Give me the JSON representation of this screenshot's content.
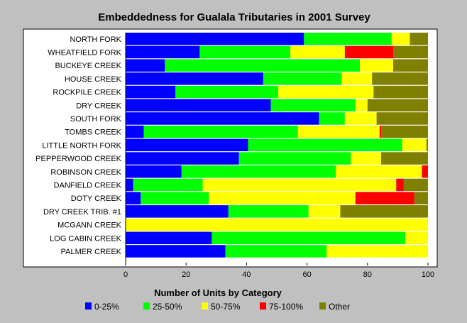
{
  "chart_data": {
    "type": "bar",
    "orientation": "horizontal",
    "stacked": true,
    "title": "Embeddedness for Gualala Tributaries in 2001 Survey",
    "xlabel": "Number of Units by Category",
    "ylabel": "",
    "xlim": [
      0,
      100
    ],
    "xticks": [
      0,
      20,
      40,
      60,
      80,
      100
    ],
    "grid": false,
    "legend_position": "bottom",
    "categories": [
      "NORTH FORK",
      "WHEATFIELD FORK",
      "BUCKEYE CREEK",
      "HOUSE CREEK",
      "ROCKPILE CREEK",
      "DRY CREEK",
      "SOUTH FORK",
      "TOMBS CREEK",
      "LITTLE NORTH FORK",
      "PEPPERWOOD CREEK",
      "ROBINSON CREEK",
      "DANFIELD CREEK",
      "DOTY CREEK",
      "DRY CREEK TRIB. #1",
      "MCGANN CREEK",
      "LOG CABIN CREEK",
      "PALMER CREEK"
    ],
    "series": [
      {
        "name": "0-25%",
        "color": "#0000ff",
        "values": [
          59,
          24.5,
          13,
          45.5,
          16.5,
          48,
          64,
          6,
          40.5,
          37.5,
          18.5,
          2.5,
          5,
          34,
          0,
          28.5,
          33
        ]
      },
      {
        "name": "25-50%",
        "color": "#00ff00",
        "values": [
          29,
          30,
          64.5,
          26,
          34,
          28,
          8.5,
          51,
          51,
          37,
          51,
          23,
          22.5,
          26.5,
          0,
          64,
          33.5
        ]
      },
      {
        "name": "50-75%",
        "color": "#ffff00",
        "values": [
          6,
          18,
          11,
          10,
          31.5,
          4,
          10.5,
          27,
          8,
          10,
          28.5,
          64,
          48.5,
          10.5,
          100,
          7.5,
          33.5
        ]
      },
      {
        "name": "75-100%",
        "color": "#ff0000",
        "values": [
          0,
          16,
          0,
          0,
          0,
          0,
          0,
          0.5,
          0,
          0,
          2,
          2.5,
          19.5,
          0,
          0,
          0,
          0
        ]
      },
      {
        "name": "Other",
        "color": "#808000",
        "values": [
          6,
          11.5,
          11.5,
          18.5,
          18,
          20,
          17,
          15.5,
          0.5,
          15.5,
          0,
          8,
          4.5,
          29,
          0,
          0,
          0
        ]
      }
    ]
  }
}
